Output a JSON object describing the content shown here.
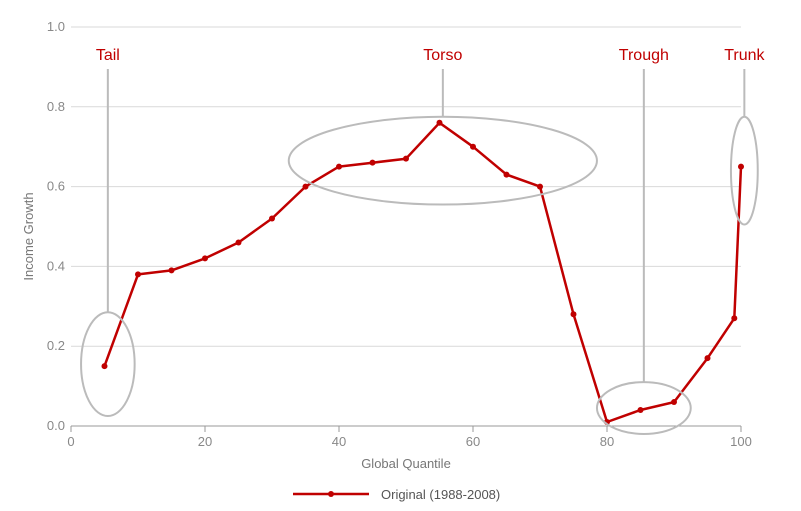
{
  "chart_data": {
    "type": "line",
    "xlabel": "Global Quantile",
    "ylabel": "Income Growth",
    "xlim": [
      0,
      100
    ],
    "ylim": [
      0,
      1.0
    ],
    "x_ticks": [
      "0",
      "20",
      "40",
      "60",
      "80",
      "100"
    ],
    "y_ticks": [
      "0.0",
      "0.2",
      "0.4",
      "0.6",
      "0.8",
      "1.0"
    ],
    "grid": "horizontal",
    "legend_position": "bottom",
    "series": [
      {
        "name": "Original (1988-2008)",
        "color": "#c00000",
        "x": [
          5,
          10,
          15,
          20,
          25,
          30,
          35,
          40,
          45,
          50,
          55,
          60,
          65,
          70,
          75,
          80,
          85,
          90,
          95,
          99,
          100
        ],
        "y": [
          0.15,
          0.38,
          0.39,
          0.42,
          0.46,
          0.52,
          0.6,
          0.65,
          0.66,
          0.67,
          0.76,
          0.7,
          0.63,
          0.6,
          0.28,
          0.01,
          0.04,
          0.06,
          0.17,
          0.27,
          0.65
        ]
      }
    ],
    "annotations": [
      {
        "label": "Tail",
        "color": "#c00000",
        "x": 5.5,
        "y": 0.155,
        "rx": 4,
        "ry": 0.13
      },
      {
        "label": "Torso",
        "color": "#c00000",
        "x": 55.5,
        "y": 0.665,
        "rx": 23,
        "ry": 0.11
      },
      {
        "label": "Trough",
        "color": "#c00000",
        "x": 85.5,
        "y": 0.045,
        "rx": 7,
        "ry": 0.065
      },
      {
        "label": "Trunk",
        "color": "#c00000",
        "x": 100.5,
        "y": 0.64,
        "rx": 2,
        "ry": 0.135
      }
    ]
  }
}
